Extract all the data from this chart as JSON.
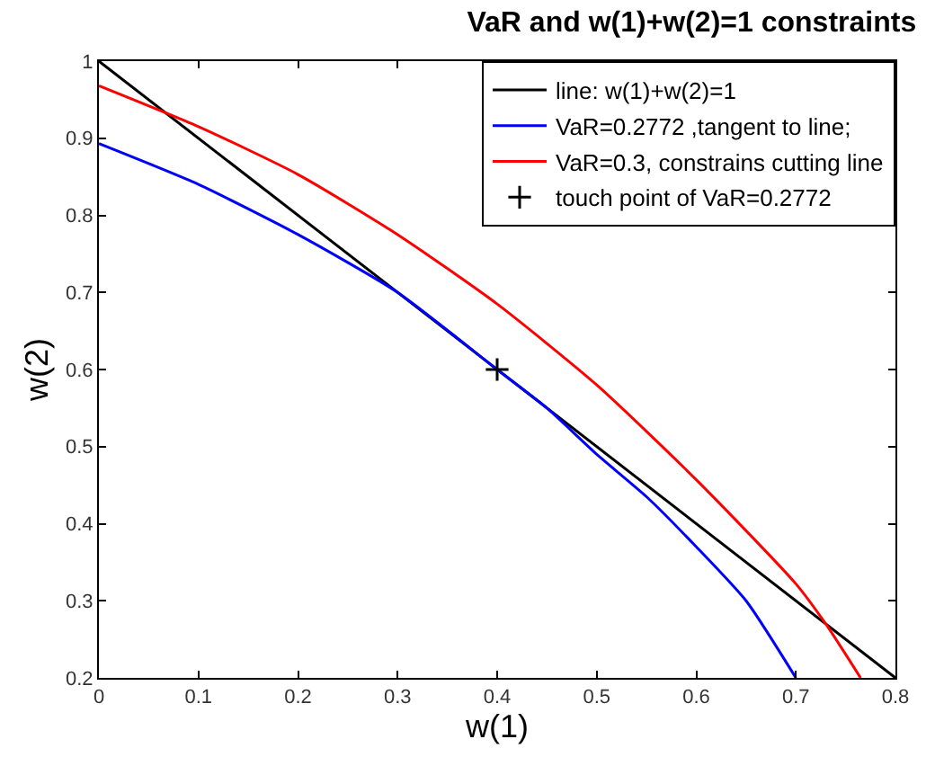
{
  "chart_data": {
    "type": "line",
    "title": "VaR and w(1)+w(2)=1 constraints",
    "xlabel": "w(1)",
    "ylabel": "w(2)",
    "xlim": [
      0,
      0.8
    ],
    "xticks": [
      0,
      0.1,
      0.2,
      0.3,
      0.4,
      0.5,
      0.6,
      0.7,
      0.8
    ],
    "ylim": [
      0.2,
      1
    ],
    "yticks": [
      0.2,
      0.3,
      0.4,
      0.5,
      0.6,
      0.7,
      0.8,
      0.9,
      1
    ],
    "legend": "top right",
    "marker": "none",
    "line_style": "solid",
    "series": [
      {
        "name": "line: w(1)+w(2)=1",
        "color": "#000000",
        "x": [
          0,
          0.8
        ],
        "values": [
          1,
          0.2
        ]
      },
      {
        "name": "VaR=0.2772 ,tangent to line;",
        "color": "#0000ff",
        "x": [
          0,
          0.1,
          0.2,
          0.3,
          0.4,
          0.45,
          0.5,
          0.55,
          0.6,
          0.65,
          0.7
        ],
        "values": [
          0.893,
          0.84,
          0.775,
          0.7,
          0.6,
          0.55,
          0.49,
          0.435,
          0.37,
          0.3,
          0.2
        ]
      },
      {
        "name": "VaR=0.3, constrains cutting line",
        "color": "#ff0000",
        "x": [
          0,
          0.1,
          0.2,
          0.3,
          0.4,
          0.5,
          0.6,
          0.7,
          0.73,
          0.765
        ],
        "values": [
          0.968,
          0.915,
          0.853,
          0.775,
          0.685,
          0.58,
          0.457,
          0.322,
          0.27,
          0.2
        ]
      },
      {
        "name": "touch point of VaR=0.2772",
        "type": "scatter",
        "marker": "cross",
        "color": "#000000",
        "x": [
          0.4
        ],
        "values": [
          0.6
        ]
      }
    ]
  }
}
